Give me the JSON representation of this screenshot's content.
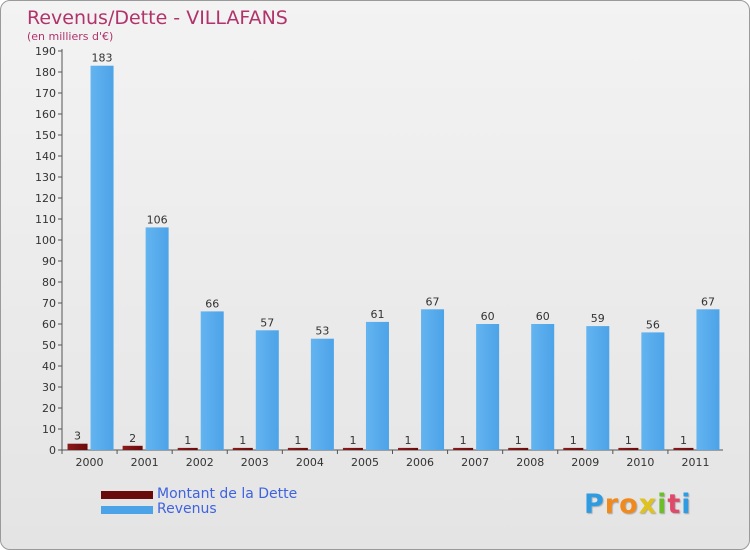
{
  "chart_data": {
    "type": "bar",
    "title": "Revenus/Dette - VILLAFANS",
    "subtitle": "(en milliers d'€)",
    "xlabel": "",
    "ylabel": "",
    "ylim": [
      0,
      190
    ],
    "ytick_step": 10,
    "grid": false,
    "legend_position": "bottom-left",
    "categories": [
      "2000",
      "2001",
      "2002",
      "2003",
      "2004",
      "2005",
      "2006",
      "2007",
      "2008",
      "2009",
      "2010",
      "2011"
    ],
    "series": [
      {
        "name": "Montant de la Dette",
        "color": "#6b0a0a",
        "values": [
          3,
          2,
          1,
          1,
          1,
          1,
          1,
          1,
          1,
          1,
          1,
          1
        ]
      },
      {
        "name": "Revenus",
        "color": "#4da3e8",
        "values": [
          183,
          106,
          66,
          57,
          53,
          61,
          67,
          60,
          60,
          59,
          56,
          67
        ]
      }
    ]
  },
  "logo": {
    "letters": [
      "P",
      "r",
      "o",
      "x",
      "i",
      "t",
      "i"
    ],
    "colors": [
      "#2f9be0",
      "#f08a1c",
      "#f08a1c",
      "#e0c21c",
      "#6cbf2a",
      "#e04a6a",
      "#2f9be0"
    ]
  }
}
